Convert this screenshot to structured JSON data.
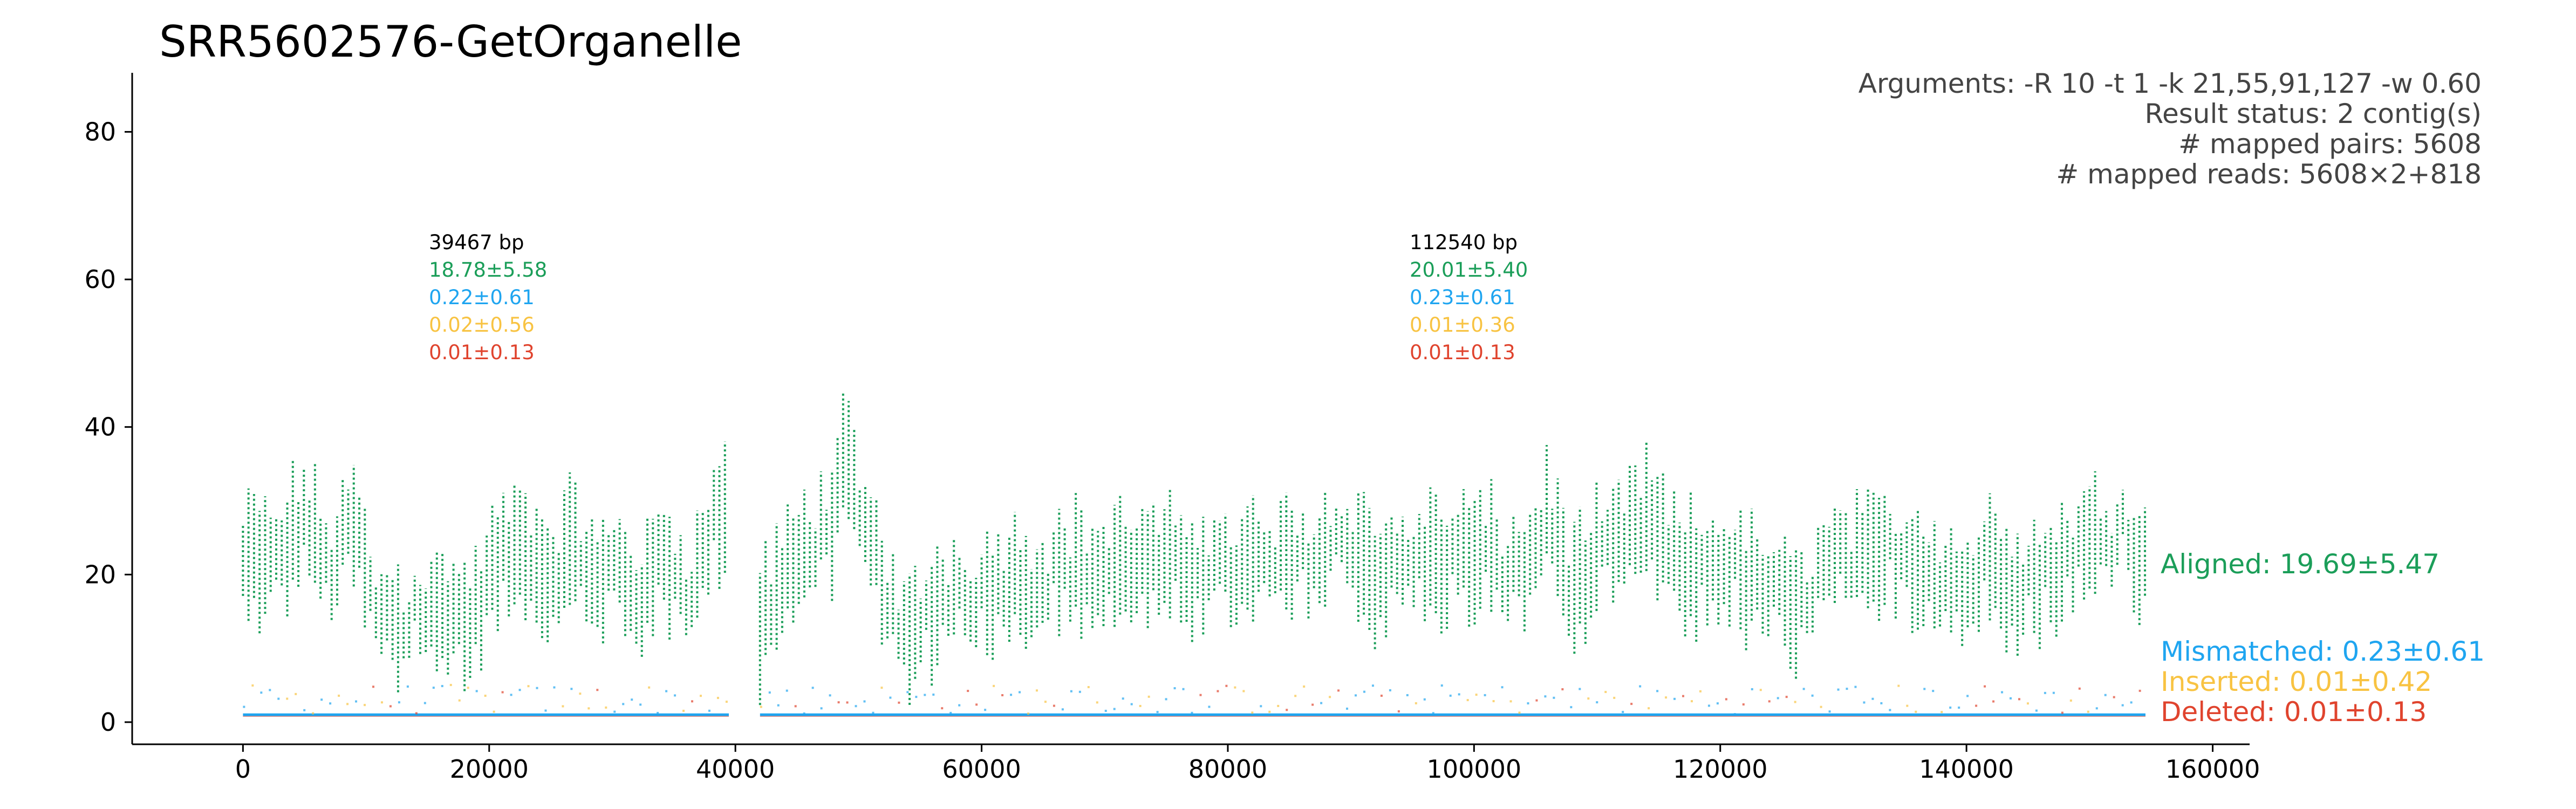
{
  "chart_data": {
    "type": "scatter",
    "title": "SRR5602576-GetOrganelle",
    "xlim": [
      -9000,
      163000
    ],
    "ylim": [
      -3,
      88
    ],
    "x_ticks": [
      "0",
      "20000",
      "40000",
      "60000",
      "80000",
      "100000",
      "120000",
      "140000",
      "160000"
    ],
    "x_tick_values": [
      0,
      20000,
      40000,
      60000,
      80000,
      100000,
      120000,
      140000,
      160000
    ],
    "y_ticks": [
      "0",
      "20",
      "40",
      "60",
      "80"
    ],
    "y_tick_values": [
      0,
      20,
      40,
      60,
      80
    ],
    "info_lines": [
      "Arguments: -R 10 -t 1 -k 21,55,91,127 -w 0.60",
      "Result status: 2 contig(s)",
      "# mapped pairs: 5608",
      "# mapped reads: 5608×2+818"
    ],
    "contigs": [
      {
        "start": 0,
        "end": 39467,
        "length_label": "39467 bp",
        "aligned": "18.78±5.58",
        "mismatched": "0.22±0.61",
        "inserted": "0.02±0.56",
        "deleted": "0.01±0.13",
        "aligned_profile": [
          [
            0,
            21
          ],
          [
            1000,
            23
          ],
          [
            2000,
            21
          ],
          [
            3000,
            22
          ],
          [
            4000,
            25
          ],
          [
            5000,
            28
          ],
          [
            6000,
            24
          ],
          [
            7000,
            20
          ],
          [
            8000,
            24
          ],
          [
            9000,
            27
          ],
          [
            10000,
            20
          ],
          [
            11000,
            13
          ],
          [
            12000,
            15
          ],
          [
            13000,
            12
          ],
          [
            14000,
            16
          ],
          [
            15000,
            14
          ],
          [
            16000,
            15
          ],
          [
            17000,
            16
          ],
          [
            18000,
            13
          ],
          [
            19000,
            15
          ],
          [
            20000,
            20
          ],
          [
            21000,
            22
          ],
          [
            22000,
            23
          ],
          [
            23000,
            25
          ],
          [
            24000,
            21
          ],
          [
            25000,
            20
          ],
          [
            26000,
            22
          ],
          [
            27000,
            24
          ],
          [
            28000,
            21
          ],
          [
            29000,
            17
          ],
          [
            30000,
            22
          ],
          [
            31000,
            20
          ],
          [
            32000,
            17
          ],
          [
            33000,
            18
          ],
          [
            34000,
            23
          ],
          [
            35000,
            21
          ],
          [
            36000,
            18
          ],
          [
            37000,
            20
          ],
          [
            38000,
            26
          ],
          [
            39000,
            30
          ]
        ]
      },
      {
        "start": 42000,
        "end": 154540,
        "length_label": "112540 bp",
        "aligned": "20.01±5.40",
        "mismatched": "0.23±0.61",
        "inserted": "0.01±0.36",
        "deleted": "0.01±0.13",
        "aligned_profile": [
          [
            42000,
            14
          ],
          [
            44000,
            19
          ],
          [
            46000,
            24
          ],
          [
            48000,
            28
          ],
          [
            49000,
            36
          ],
          [
            50000,
            27
          ],
          [
            52000,
            20
          ],
          [
            53000,
            13
          ],
          [
            54000,
            10
          ],
          [
            56000,
            16
          ],
          [
            58000,
            18
          ],
          [
            60000,
            17
          ],
          [
            62000,
            20
          ],
          [
            64000,
            19
          ],
          [
            66000,
            20
          ],
          [
            68000,
            21
          ],
          [
            70000,
            20
          ],
          [
            72000,
            22
          ],
          [
            74000,
            21
          ],
          [
            76000,
            20
          ],
          [
            78000,
            22
          ],
          [
            80000,
            20
          ],
          [
            82000,
            21
          ],
          [
            84000,
            21
          ],
          [
            86000,
            22
          ],
          [
            88000,
            23
          ],
          [
            90000,
            25
          ],
          [
            92000,
            20
          ],
          [
            94000,
            21
          ],
          [
            96000,
            22
          ],
          [
            98000,
            22
          ],
          [
            100000,
            23
          ],
          [
            102000,
            21
          ],
          [
            104000,
            20
          ],
          [
            106000,
            28
          ],
          [
            108000,
            18
          ],
          [
            110000,
            21
          ],
          [
            112000,
            24
          ],
          [
            114000,
            28
          ],
          [
            116000,
            22
          ],
          [
            118000,
            20
          ],
          [
            120000,
            22
          ],
          [
            122000,
            19
          ],
          [
            124000,
            18
          ],
          [
            126000,
            14
          ],
          [
            128000,
            20
          ],
          [
            130000,
            22
          ],
          [
            132000,
            21
          ],
          [
            134000,
            23
          ],
          [
            136000,
            22
          ],
          [
            138000,
            20
          ],
          [
            140000,
            18
          ],
          [
            142000,
            22
          ],
          [
            144000,
            20
          ],
          [
            146000,
            19
          ],
          [
            148000,
            22
          ],
          [
            150000,
            24
          ],
          [
            152000,
            25
          ],
          [
            153000,
            28
          ],
          [
            154000,
            21
          ]
        ]
      }
    ],
    "series": [
      {
        "name": "Aligned",
        "label": "Aligned: 19.69±5.47",
        "color": "#1b9e59",
        "baseline": 20
      },
      {
        "name": "Mismatched",
        "label": "Mismatched: 0.23±0.61",
        "color": "#1fa5f0",
        "baseline": 1
      },
      {
        "name": "Inserted",
        "label": "Inserted: 0.01±0.42",
        "color": "#f8c342",
        "baseline": 1
      },
      {
        "name": "Deleted",
        "label": "Deleted: 0.01±0.13",
        "color": "#e0442e",
        "baseline": 1
      }
    ],
    "grid": false
  }
}
